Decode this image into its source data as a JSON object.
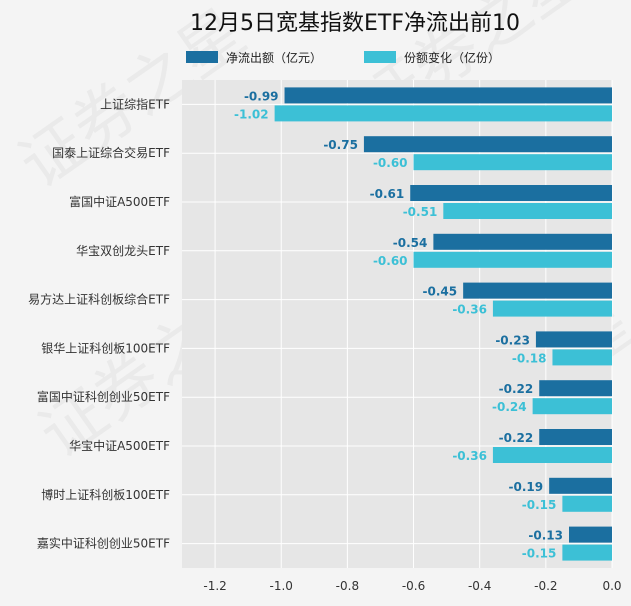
{
  "chart_data": {
    "type": "bar",
    "orientation": "horizontal",
    "title": "12月5日宽基指数ETF净流出前10",
    "xlim": [
      -1.3,
      0.0
    ],
    "xticks": [
      -1.2,
      -1.0,
      -0.8,
      -0.6,
      -0.4,
      -0.2,
      0.0
    ],
    "xtick_labels": [
      "-1.2",
      "-1.0",
      "-0.8",
      "-0.6",
      "-0.4",
      "-0.2",
      "0.0"
    ],
    "grid": true,
    "legend_position": "top-center",
    "categories": [
      "上证综指ETF",
      "国泰上证综合交易ETF",
      "富国中证A500ETF",
      "华宝双创龙头ETF",
      "易方达上证科创板综合ETF",
      "银华上证科创板100ETF",
      "富国中证科创创业50ETF",
      "华宝中证A500ETF",
      "博时上证科创板100ETF",
      "嘉实中证科创创业50ETF"
    ],
    "series": [
      {
        "name": "净流出额（亿元）",
        "color": "#1b6fa0",
        "values": [
          -0.99,
          -0.75,
          -0.61,
          -0.54,
          -0.45,
          -0.23,
          -0.22,
          -0.22,
          -0.19,
          -0.13
        ],
        "labels": [
          "-0.99",
          "-0.75",
          "-0.61",
          "-0.54",
          "-0.45",
          "-0.23",
          "-0.22",
          "-0.22",
          "-0.19",
          "-0.13"
        ]
      },
      {
        "name": "份额变化（亿份）",
        "color": "#3cc0d6",
        "values": [
          -1.02,
          -0.6,
          -0.51,
          -0.6,
          -0.36,
          -0.18,
          -0.24,
          -0.36,
          -0.15,
          -0.15
        ],
        "labels": [
          "-1.02",
          "-0.60",
          "-0.51",
          "-0.60",
          "-0.36",
          "-0.18",
          "-0.24",
          "-0.36",
          "-0.15",
          "-0.15"
        ]
      }
    ],
    "watermark": "证券之星"
  },
  "colors": {
    "plot_background": "#e6e6e6",
    "page_background": "#f4f4f4",
    "grid": "#ffffff"
  }
}
